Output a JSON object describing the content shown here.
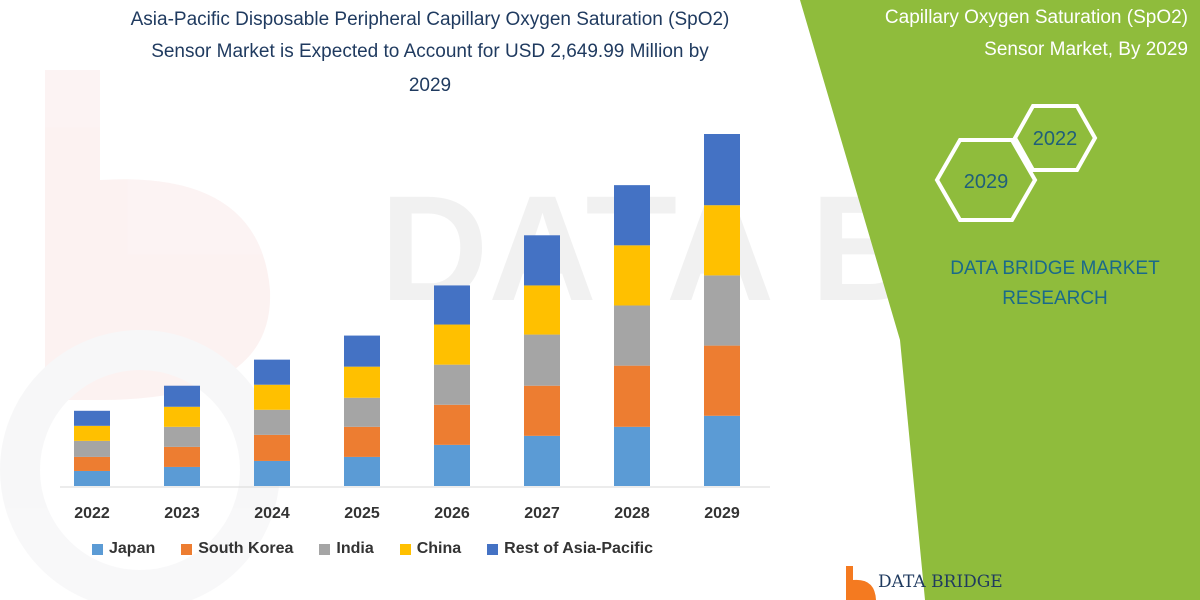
{
  "title_lines": [
    "Asia-Pacific Disposable Peripheral  Capillary Oxygen Saturation (SpO2)",
    "Sensor Market is Expected to Account for USD 2,649.99 Million by",
    "2029"
  ],
  "side_panel": {
    "heading_lines": [
      "Capillary Oxygen Saturation (SpO2)",
      "Sensor Market, By 2029"
    ],
    "hex_badges": [
      "2022",
      "2029"
    ],
    "brand_lines": [
      "DATA BRIDGE MARKET",
      "RESEARCH"
    ],
    "panel_color": "#8fbc3c"
  },
  "footer_logo": {
    "text": "DATA BRIDGE",
    "accent": "#f47a20"
  },
  "watermark": {
    "text": "DATA BRIDGE"
  },
  "chart_data": {
    "type": "bar",
    "stacked": true,
    "categories": [
      "2022",
      "2023",
      "2024",
      "2025",
      "2026",
      "2027",
      "2028",
      "2029"
    ],
    "series": [
      {
        "name": "Japan",
        "color": "#5b9bd5",
        "values": [
          15,
          19,
          25,
          29,
          41,
          50,
          59,
          70
        ]
      },
      {
        "name": "South Korea",
        "color": "#ed7d31",
        "values": [
          14,
          20,
          26,
          30,
          40,
          50,
          61,
          70
        ]
      },
      {
        "name": "India",
        "color": "#a5a5a5",
        "values": [
          16,
          20,
          25,
          29,
          40,
          51,
          60,
          70
        ]
      },
      {
        "name": "China",
        "color": "#ffc000",
        "values": [
          15,
          20,
          25,
          31,
          40,
          49,
          60,
          70
        ]
      },
      {
        "name": "Rest of Asia-Pacific",
        "color": "#4472c4",
        "values": [
          15,
          21,
          25,
          31,
          39,
          50,
          60,
          71
        ]
      }
    ],
    "legend_position": "bottom",
    "grid": false,
    "y_axis_visible": false
  }
}
